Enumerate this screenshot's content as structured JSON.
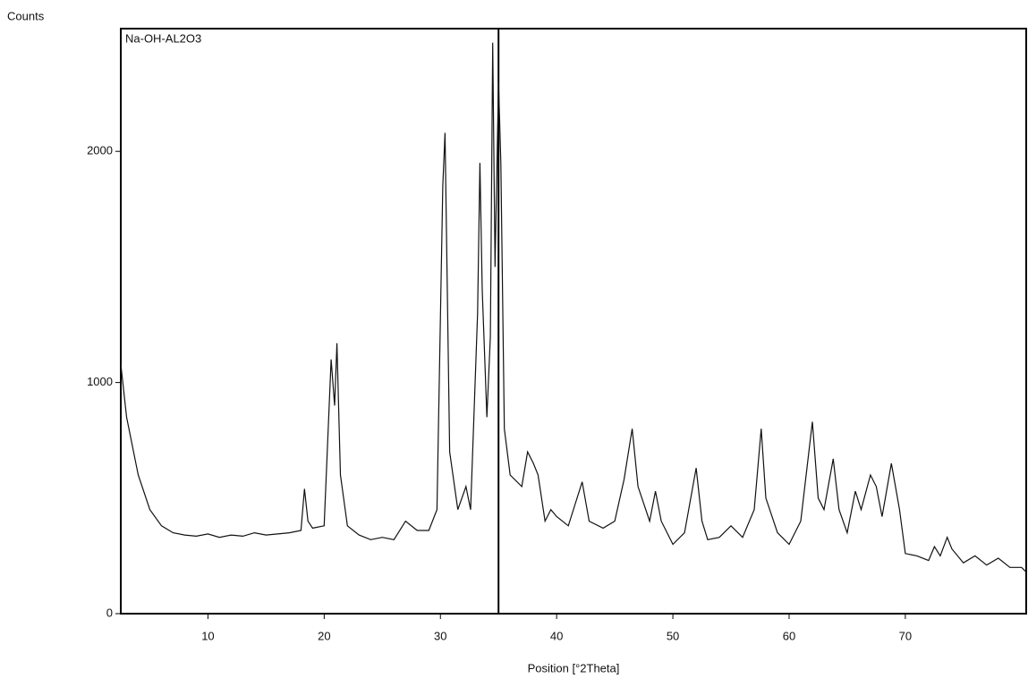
{
  "chart_data": {
    "type": "line",
    "title": "Counts",
    "legend_label": "Na-OH-AL2O3",
    "x_label": "Position [°2Theta]",
    "xlim": [
      2.5,
      80.4
    ],
    "ylim": [
      0,
      2531
    ],
    "xticks": [
      10,
      20,
      30,
      40,
      50,
      60,
      70
    ],
    "yticks": [
      0,
      1000,
      2000
    ],
    "marker_x": 35,
    "color": "#111111",
    "x": [
      2.5,
      3,
      4,
      5,
      6,
      7,
      8,
      9,
      10,
      11,
      12,
      13,
      14,
      15,
      16,
      17,
      18,
      18.3,
      18.6,
      19,
      20,
      20.6,
      20.9,
      21.1,
      21.4,
      22,
      23,
      24,
      25,
      26,
      27,
      28,
      29,
      29.7,
      30.2,
      30.4,
      30.8,
      31.5,
      32.2,
      32.6,
      33.2,
      33.4,
      33.6,
      34,
      34.3,
      34.5,
      34.7,
      35,
      35.2,
      35.5,
      36,
      37,
      37.5,
      38,
      38.4,
      39,
      39.5,
      40,
      41,
      42.2,
      42.8,
      44,
      45,
      45.8,
      46.5,
      47,
      48,
      48.5,
      49,
      50,
      51,
      52,
      52.5,
      53,
      54,
      55,
      56,
      57,
      57.6,
      58,
      59,
      60,
      61,
      62,
      62.5,
      63,
      63.8,
      64.3,
      65,
      65.7,
      66.2,
      67,
      67.5,
      68,
      68.8,
      69.5,
      70,
      71,
      72,
      72.5,
      73,
      73.6,
      74,
      75,
      76,
      77,
      78,
      79,
      80,
      80.4
    ],
    "values": [
      1080,
      850,
      600,
      450,
      380,
      350,
      340,
      335,
      345,
      330,
      340,
      335,
      350,
      340,
      345,
      350,
      360,
      540,
      400,
      370,
      380,
      1100,
      900,
      1170,
      600,
      380,
      340,
      320,
      330,
      320,
      400,
      360,
      360,
      450,
      1850,
      2080,
      700,
      450,
      550,
      450,
      1300,
      1950,
      1400,
      850,
      1200,
      2470,
      1500,
      2300,
      1950,
      800,
      600,
      550,
      700,
      650,
      600,
      400,
      450,
      420,
      380,
      570,
      400,
      370,
      400,
      580,
      800,
      550,
      400,
      530,
      400,
      300,
      350,
      630,
      400,
      320,
      330,
      380,
      330,
      450,
      800,
      500,
      350,
      300,
      400,
      830,
      500,
      450,
      670,
      450,
      350,
      530,
      450,
      600,
      550,
      420,
      650,
      450,
      260,
      250,
      230,
      290,
      250,
      330,
      280,
      220,
      250,
      210,
      240,
      200,
      200,
      180
    ]
  }
}
